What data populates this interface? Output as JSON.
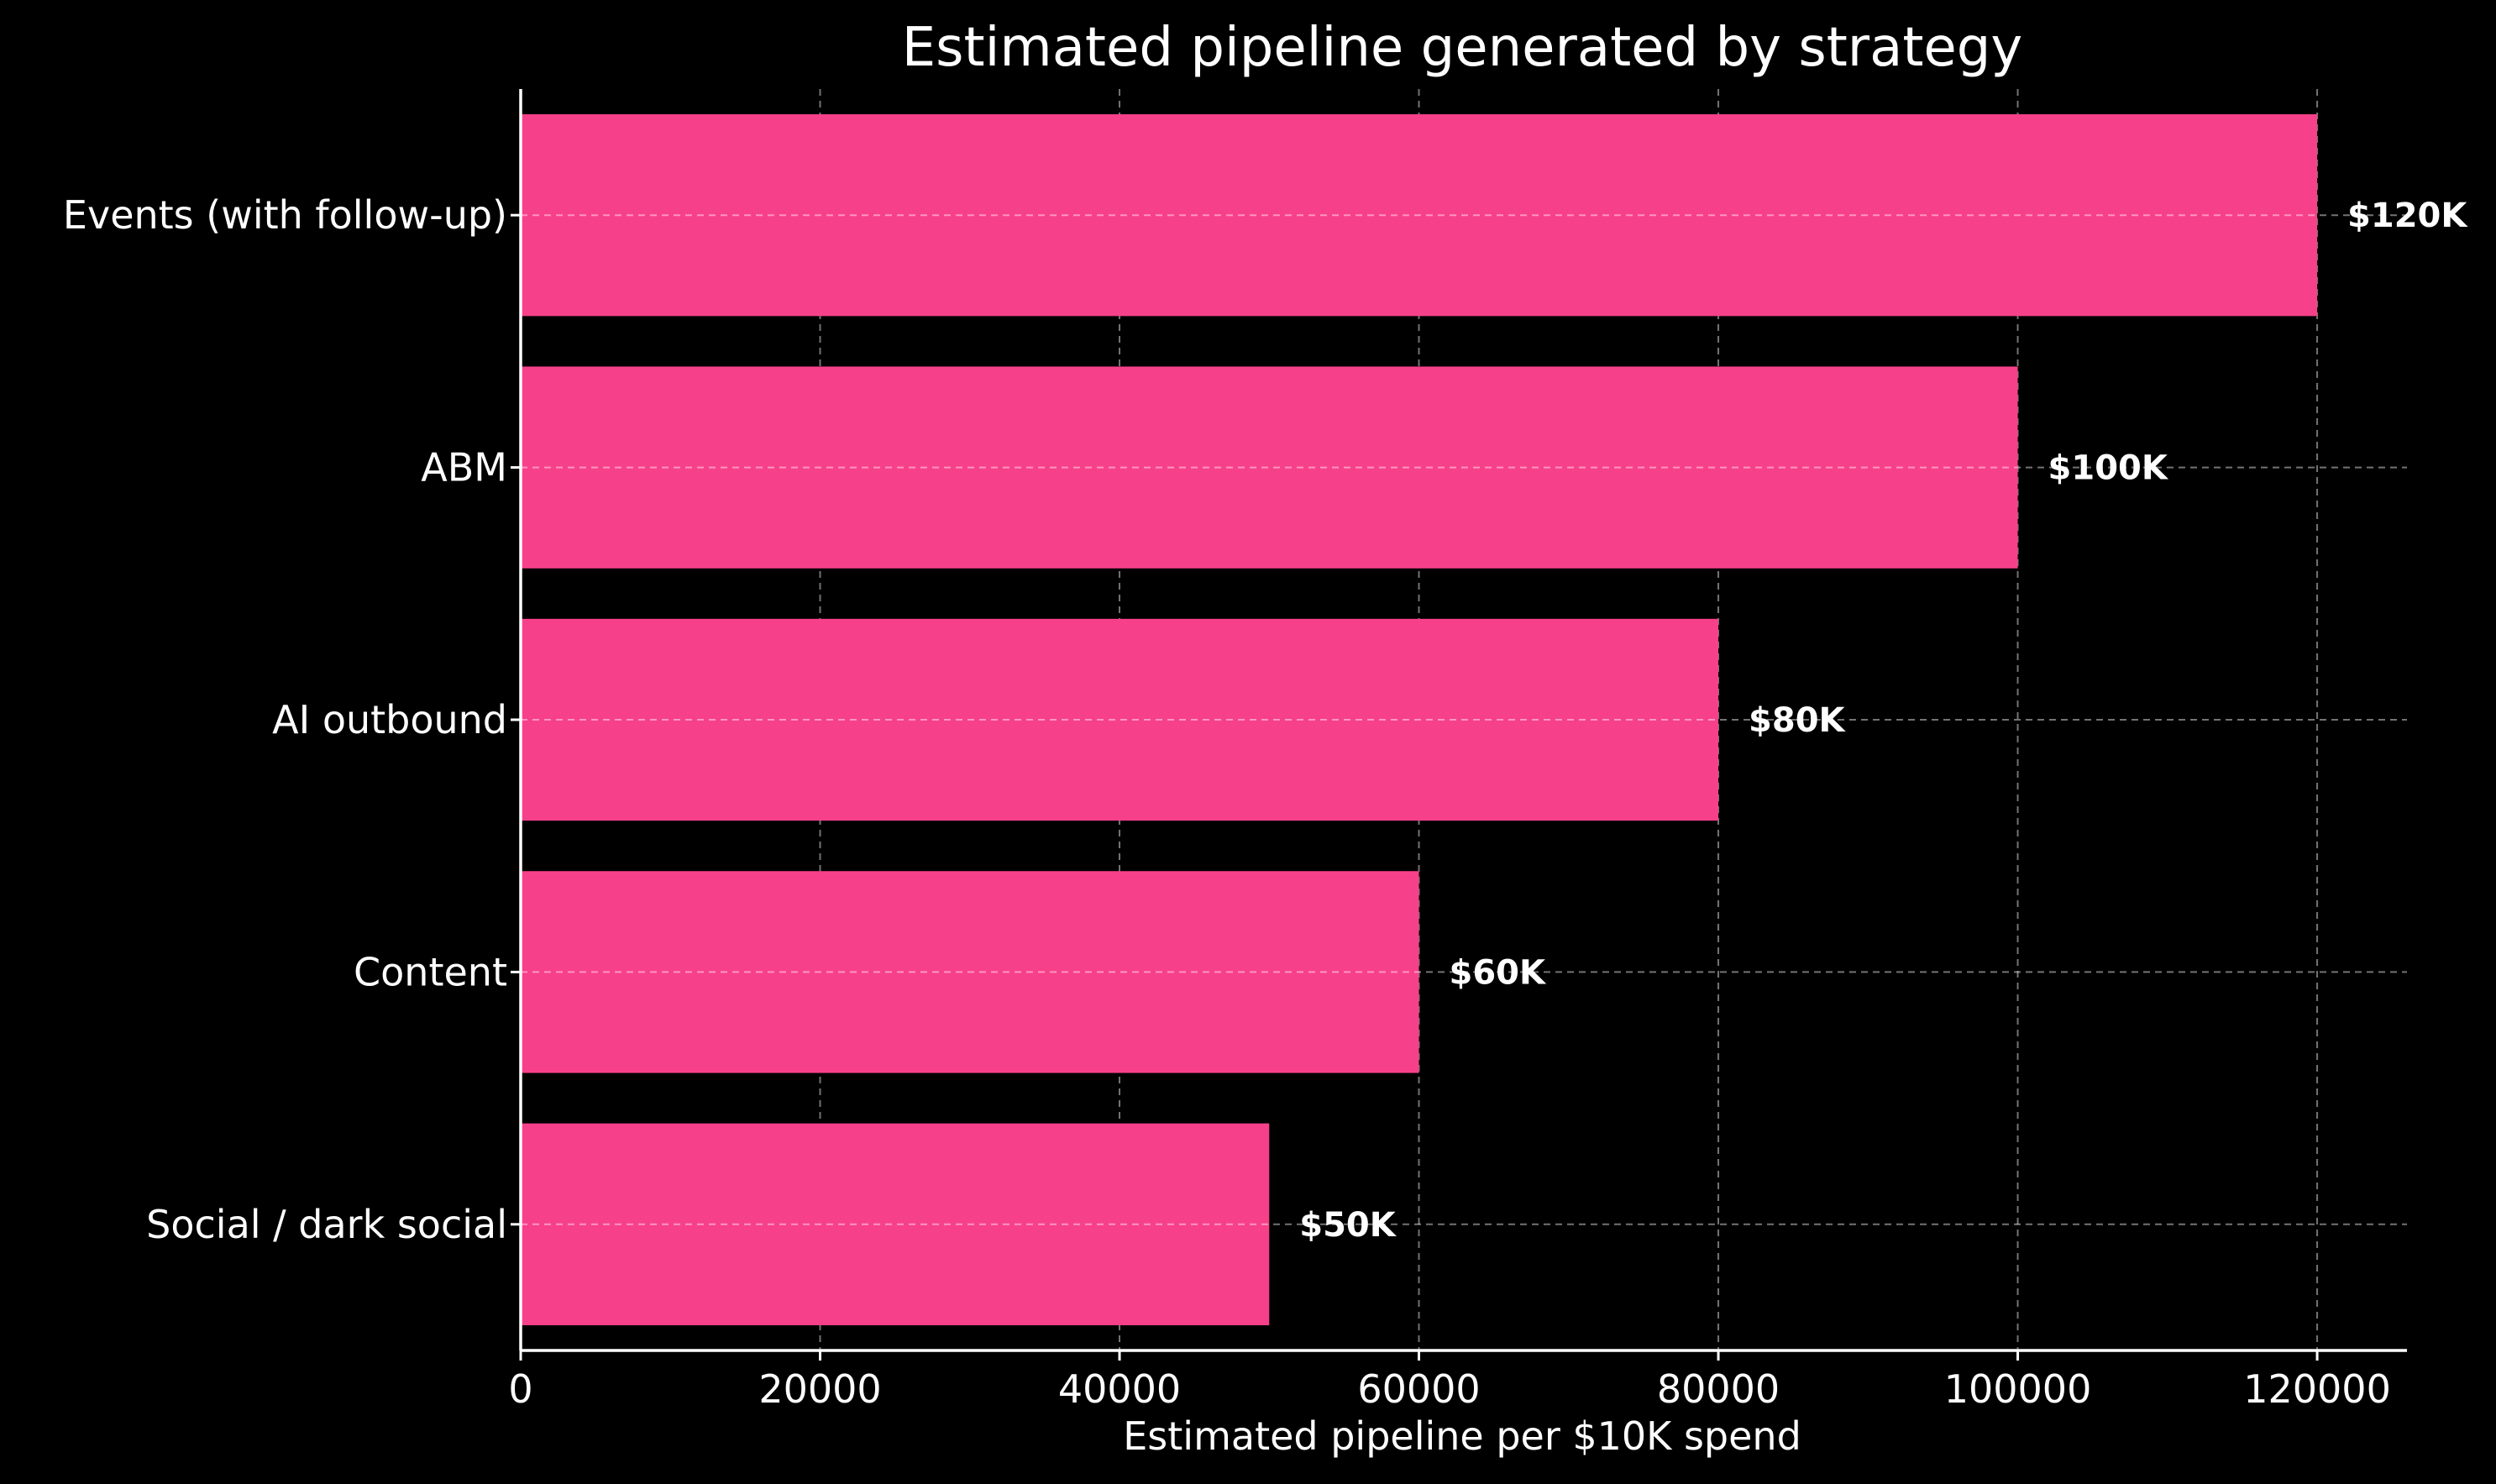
{
  "chart_data": {
    "type": "bar",
    "orientation": "horizontal",
    "title": "Estimated pipeline generated by strategy",
    "xlabel": "Estimated pipeline per $10K spend",
    "ylabel": "",
    "categories": [
      "Events (with follow-up)",
      "ABM",
      "AI outbound",
      "Content",
      "Social / dark social"
    ],
    "values": [
      120000,
      100000,
      80000,
      60000,
      50000
    ],
    "bar_labels": [
      "$120K",
      "$100K",
      "$80K",
      "$60K",
      "$50K"
    ],
    "xlim": [
      0,
      126000
    ],
    "x_ticks": [
      0,
      20000,
      40000,
      60000,
      80000,
      100000,
      120000
    ],
    "x_tick_labels": [
      "0",
      "20000",
      "40000",
      "60000",
      "80000",
      "100000",
      "120000"
    ],
    "grid": true,
    "legend": "none",
    "colors": {
      "background": "#000000",
      "bar": "#f7408a",
      "text": "#ffffff",
      "grid": "#ffffff"
    }
  }
}
